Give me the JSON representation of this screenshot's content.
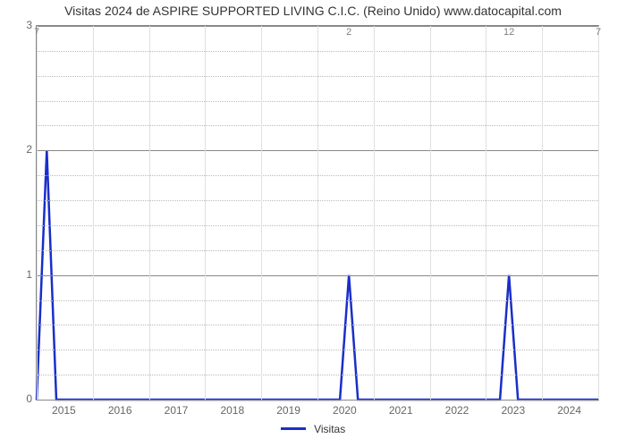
{
  "chart": {
    "type": "line",
    "title": "Visitas 2024 de ASPIRE SUPPORTED LIVING C.I.C. (Reino Unido) www.datocapital.com",
    "title_fontsize": 14,
    "title_color": "#333333",
    "background_color": "#ffffff",
    "plot_border_color": "#888888",
    "grid_color": "#e0e0e0",
    "dotted_grid_color": "#bbbbbb",
    "tick_font_color": "#666666",
    "tick_fontsize": 12,
    "data_label_color": "#808080",
    "data_label_fontsize": 11,
    "line_color": "#1a2ec9",
    "line_width": 2.5,
    "y_axis": {
      "min": 0,
      "max": 3,
      "ticks": [
        0,
        1,
        2,
        3
      ]
    },
    "x_axis": {
      "year_labels": [
        "2015",
        "2016",
        "2017",
        "2018",
        "2019",
        "2020",
        "2021",
        "2022",
        "2023",
        "2024"
      ],
      "n_major_gridlines": 11
    },
    "series": {
      "name": "Visitas",
      "points": [
        {
          "x_frac": 0.0,
          "y": 0,
          "label": "7"
        },
        {
          "x_frac": 0.018,
          "y": 2,
          "label": null
        },
        {
          "x_frac": 0.035,
          "y": 0,
          "label": null
        },
        {
          "x_frac": 0.54,
          "y": 0,
          "label": null
        },
        {
          "x_frac": 0.556,
          "y": 1,
          "label": "2"
        },
        {
          "x_frac": 0.572,
          "y": 0,
          "label": null
        },
        {
          "x_frac": 0.825,
          "y": 0,
          "label": null
        },
        {
          "x_frac": 0.841,
          "y": 1,
          "label": "12"
        },
        {
          "x_frac": 0.857,
          "y": 0,
          "label": null
        },
        {
          "x_frac": 1.0,
          "y": 0,
          "label": "7"
        }
      ]
    },
    "legend": {
      "label": "Visitas",
      "swatch_color": "#1a2ec9"
    }
  }
}
